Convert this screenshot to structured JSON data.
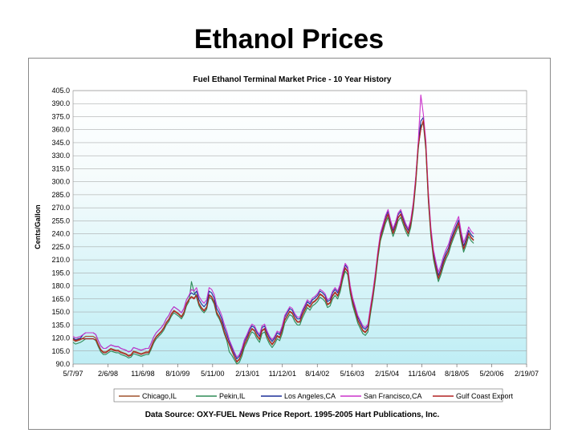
{
  "slide": {
    "title": "Ethanol Prices"
  },
  "chart_data": {
    "type": "line",
    "title": "Fuel Ethanol Terminal Market Price - 10 Year History",
    "xlabel": "",
    "ylabel": "Cents/Gallon",
    "ylim": [
      90,
      405
    ],
    "yticks": [
      90,
      105,
      120,
      135,
      150,
      165,
      180,
      195,
      210,
      225,
      240,
      255,
      270,
      285,
      300,
      315,
      330,
      345,
      360,
      375,
      390,
      405
    ],
    "x_tick_labels": [
      "5/7/97",
      "2/6/98",
      "11/6/98",
      "8/10/99",
      "5/11/00",
      "2/13/01",
      "11/12/01",
      "8/14/02",
      "5/16/03",
      "2/15/04",
      "11/16/04",
      "8/18/05",
      "5/20/06",
      "2/19/07"
    ],
    "legend_position": "bottom",
    "grid": "horizontal",
    "source": "Data Source: OXY-FUEL News Price Report. 1995-2005 Hart Publications, Inc.",
    "x_index": [
      0,
      4,
      8,
      12,
      16,
      20,
      24,
      28,
      32,
      36,
      40,
      44,
      48,
      52,
      56,
      60,
      64,
      68,
      72,
      76,
      80,
      84,
      88,
      92,
      96,
      100,
      104,
      108,
      112,
      116,
      120,
      124,
      128,
      132,
      136,
      140,
      144,
      148,
      152,
      156,
      160,
      164,
      168,
      172,
      176,
      180,
      184,
      188,
      192,
      196,
      200,
      204,
      208,
      212,
      216,
      220,
      224,
      228,
      232,
      236,
      240,
      244,
      248,
      252,
      256,
      260,
      264,
      268,
      272,
      276,
      280,
      284,
      288,
      292,
      296,
      300,
      304,
      308,
      312,
      316,
      320,
      324,
      328,
      332,
      336,
      340,
      344,
      348,
      352,
      356,
      360,
      364,
      368,
      372,
      376,
      380,
      384,
      388,
      392,
      396,
      400,
      404,
      408,
      412,
      416,
      420,
      424,
      428,
      432,
      436,
      440,
      444,
      448,
      452,
      456,
      460,
      464,
      468,
      472,
      476,
      480,
      484,
      488,
      492,
      496,
      500,
      504,
      508,
      512,
      516,
      520,
      524,
      528,
      532,
      536,
      540,
      544,
      548,
      552,
      556,
      560,
      564,
      568,
      572,
      576,
      580,
      584,
      588,
      592,
      596,
      600,
      604,
      608,
      612,
      616,
      620,
      624,
      628,
      632,
      636,
      640,
      644,
      648,
      652,
      656,
      660,
      664,
      668,
      672,
      676,
      680,
      684,
      688,
      692,
      696,
      700,
      704,
      708,
      712,
      716
    ],
    "series": [
      {
        "name": "Chicago,IL",
        "color": "#a0522d",
        "values": [
          118,
          116,
          117,
          118,
          120,
          122,
          122,
          122,
          122,
          120,
          113,
          107,
          104,
          104,
          106,
          108,
          107,
          106,
          106,
          104,
          103,
          102,
          100,
          101,
          105,
          104,
          103,
          102,
          103,
          104,
          104,
          110,
          117,
          122,
          125,
          128,
          132,
          138,
          142,
          148,
          152,
          150,
          148,
          145,
          150,
          160,
          165,
          168,
          166,
          170,
          160,
          155,
          152,
          156,
          170,
          168,
          162,
          150,
          145,
          138,
          128,
          120,
          112,
          105,
          98,
          92,
          95,
          102,
          112,
          118,
          125,
          130,
          128,
          122,
          118,
          128,
          130,
          122,
          116,
          112,
          116,
          122,
          120,
          128,
          140,
          145,
          150,
          148,
          142,
          138,
          138,
          146,
          152,
          158,
          155,
          160,
          162,
          165,
          170,
          168,
          165,
          158,
          160,
          168,
          172,
          168,
          176,
          190,
          200,
          196,
          174,
          160,
          150,
          140,
          134,
          128,
          126,
          130,
          150,
          168,
          190,
          215,
          235,
          245,
          255,
          262,
          250,
          240,
          248,
          258,
          262,
          254,
          246,
          240,
          250,
          270,
          300,
          340,
          360,
          370,
          340,
          280,
          240,
          214,
          200,
          188,
          196,
          206,
          214,
          220,
          230,
          238,
          245,
          252,
          235,
          222,
          230,
          240,
          235,
          232
        ]
      },
      {
        "name": "Pekin,IL",
        "color": "#2e8b57",
        "values": [
          115,
          113,
          114,
          115,
          117,
          119,
          119,
          119,
          119,
          117,
          110,
          104,
          101,
          101,
          103,
          105,
          104,
          103,
          103,
          101,
          100,
          99,
          97,
          98,
          102,
          101,
          100,
          99,
          100,
          101,
          101,
          107,
          114,
          119,
          122,
          125,
          129,
          135,
          139,
          145,
          149,
          147,
          145,
          142,
          147,
          157,
          162,
          185,
          173,
          167,
          157,
          152,
          149,
          153,
          167,
          165,
          159,
          147,
          142,
          135,
          125,
          117,
          104,
          100,
          95,
          90,
          92,
          99,
          109,
          115,
          122,
          127,
          125,
          119,
          115,
          125,
          127,
          119,
          113,
          109,
          113,
          119,
          117,
          125,
          137,
          142,
          147,
          145,
          139,
          135,
          135,
          143,
          149,
          155,
          152,
          157,
          159,
          162,
          167,
          165,
          162,
          155,
          157,
          165,
          169,
          165,
          173,
          187,
          197,
          193,
          171,
          157,
          147,
          137,
          131,
          125,
          123,
          127,
          147,
          165,
          187,
          212,
          232,
          242,
          252,
          259,
          247,
          237,
          245,
          255,
          259,
          251,
          243,
          237,
          247,
          267,
          297,
          337,
          365,
          367,
          337,
          277,
          237,
          211,
          197,
          185,
          193,
          203,
          211,
          217,
          227,
          235,
          242,
          249,
          232,
          219,
          227,
          237,
          232,
          229
        ]
      },
      {
        "name": "Los Angeles,CA",
        "color": "#1c2e99",
        "values": [
          120,
          118,
          119,
          120,
          124,
          126,
          126,
          126,
          126,
          124,
          117,
          111,
          108,
          108,
          110,
          112,
          111,
          110,
          110,
          108,
          107,
          106,
          104,
          105,
          109,
          108,
          107,
          106,
          107,
          108,
          108,
          114,
          121,
          126,
          129,
          132,
          136,
          142,
          146,
          152,
          156,
          154,
          152,
          149,
          154,
          164,
          169,
          172,
          170,
          174,
          164,
          159,
          156,
          160,
          174,
          172,
          166,
          154,
          149,
          142,
          132,
          124,
          116,
          109,
          102,
          96,
          99,
          106,
          116,
          122,
          129,
          134,
          132,
          126,
          122,
          132,
          134,
          126,
          120,
          116,
          120,
          126,
          124,
          132,
          144,
          149,
          154,
          152,
          146,
          142,
          142,
          150,
          156,
          162,
          159,
          164,
          166,
          169,
          174,
          172,
          169,
          162,
          164,
          172,
          176,
          172,
          180,
          194,
          204,
          200,
          178,
          164,
          154,
          144,
          138,
          132,
          130,
          134,
          154,
          172,
          194,
          219,
          239,
          249,
          259,
          266,
          254,
          244,
          252,
          262,
          266,
          258,
          250,
          244,
          254,
          274,
          304,
          344,
          370,
          374,
          344,
          284,
          244,
          218,
          204,
          192,
          200,
          210,
          218,
          224,
          234,
          242,
          249,
          256,
          239,
          226,
          234,
          244,
          239,
          236
        ]
      },
      {
        "name": "San Francisco,CA",
        "color": "#cc33cc",
        "values": [
          122,
          120,
          121,
          122,
          124,
          126,
          126,
          126,
          126,
          124,
          117,
          111,
          108,
          108,
          110,
          112,
          111,
          110,
          110,
          108,
          107,
          106,
          104,
          105,
          109,
          108,
          107,
          106,
          107,
          108,
          108,
          114,
          121,
          126,
          129,
          132,
          136,
          142,
          146,
          152,
          156,
          154,
          152,
          149,
          154,
          164,
          169,
          176,
          174,
          178,
          168,
          163,
          160,
          164,
          178,
          176,
          170,
          158,
          153,
          146,
          136,
          128,
          118,
          111,
          104,
          98,
          101,
          108,
          118,
          124,
          131,
          136,
          134,
          128,
          124,
          134,
          136,
          128,
          122,
          118,
          122,
          128,
          126,
          134,
          146,
          151,
          156,
          154,
          148,
          144,
          144,
          152,
          158,
          164,
          161,
          166,
          168,
          171,
          176,
          174,
          171,
          164,
          166,
          174,
          178,
          174,
          182,
          196,
          206,
          202,
          180,
          166,
          156,
          146,
          140,
          134,
          132,
          136,
          156,
          174,
          196,
          221,
          241,
          251,
          261,
          268,
          256,
          246,
          254,
          264,
          268,
          260,
          252,
          246,
          256,
          276,
          306,
          346,
          400,
          378,
          348,
          288,
          248,
          222,
          208,
          196,
          204,
          214,
          222,
          228,
          238,
          246,
          253,
          260,
          243,
          230,
          238,
          248,
          243,
          240
        ]
      },
      {
        "name": "Gulf Coast Export",
        "color": "#b22222",
        "values": [
          119,
          117,
          118,
          119,
          119,
          119,
          119,
          119,
          119,
          118,
          112,
          106,
          103,
          103,
          105,
          107,
          106,
          105,
          105,
          103,
          102,
          101,
          99,
          100,
          104,
          103,
          102,
          101,
          102,
          103,
          103,
          109,
          116,
          121,
          124,
          127,
          131,
          137,
          141,
          147,
          151,
          149,
          147,
          144,
          149,
          159,
          164,
          167,
          165,
          169,
          159,
          154,
          151,
          155,
          169,
          167,
          161,
          149,
          144,
          137,
          127,
          119,
          113,
          106,
          99,
          93,
          96,
          103,
          113,
          119,
          126,
          131,
          129,
          123,
          119,
          129,
          131,
          123,
          117,
          113,
          117,
          123,
          121,
          129,
          141,
          146,
          151,
          149,
          143,
          139,
          139,
          147,
          153,
          159,
          156,
          161,
          163,
          166,
          171,
          169,
          166,
          159,
          161,
          169,
          173,
          169,
          177,
          191,
          201,
          197,
          175,
          161,
          151,
          141,
          135,
          129,
          127,
          131,
          151,
          169,
          191,
          216,
          236,
          246,
          256,
          263,
          251,
          241,
          249,
          259,
          263,
          255,
          247,
          241,
          251,
          271,
          301,
          341,
          361,
          371,
          341,
          281,
          241,
          215,
          201,
          189,
          197,
          207,
          215,
          221,
          231,
          239,
          246,
          253,
          236,
          223,
          231,
          241,
          236,
          233
        ]
      }
    ]
  }
}
